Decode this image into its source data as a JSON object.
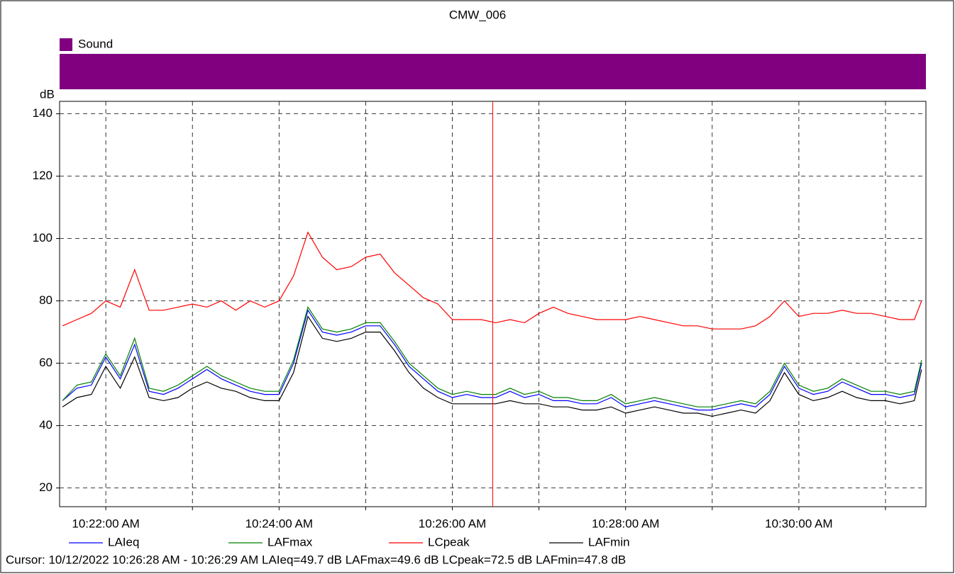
{
  "chart_data": {
    "type": "line",
    "title": "CMW_006",
    "y_label": "dB",
    "band": {
      "name": "Sound",
      "color": "#800080"
    },
    "x": [
      "10:21:30 AM",
      "10:21:40 AM",
      "10:21:50 AM",
      "10:22:00 AM",
      "10:22:10 AM",
      "10:22:20 AM",
      "10:22:30 AM",
      "10:22:40 AM",
      "10:22:50 AM",
      "10:23:00 AM",
      "10:23:10 AM",
      "10:23:20 AM",
      "10:23:30 AM",
      "10:23:40 AM",
      "10:23:50 AM",
      "10:24:00 AM",
      "10:24:10 AM",
      "10:24:20 AM",
      "10:24:30 AM",
      "10:24:40 AM",
      "10:24:50 AM",
      "10:25:00 AM",
      "10:25:10 AM",
      "10:25:20 AM",
      "10:25:30 AM",
      "10:25:40 AM",
      "10:25:50 AM",
      "10:26:00 AM",
      "10:26:10 AM",
      "10:26:20 AM",
      "10:26:30 AM",
      "10:26:40 AM",
      "10:26:50 AM",
      "10:27:00 AM",
      "10:27:10 AM",
      "10:27:20 AM",
      "10:27:30 AM",
      "10:27:40 AM",
      "10:27:50 AM",
      "10:28:00 AM",
      "10:28:10 AM",
      "10:28:20 AM",
      "10:28:30 AM",
      "10:28:40 AM",
      "10:28:50 AM",
      "10:29:00 AM",
      "10:29:10 AM",
      "10:29:20 AM",
      "10:29:30 AM",
      "10:29:40 AM",
      "10:29:50 AM",
      "10:30:00 AM",
      "10:30:10 AM",
      "10:30:20 AM",
      "10:30:30 AM",
      "10:30:40 AM",
      "10:30:50 AM",
      "10:31:00 AM",
      "10:31:10 AM",
      "10:31:20 AM",
      "10:31:25 AM"
    ],
    "series": [
      {
        "name": "LAIeq",
        "color": "#0000ff",
        "values": [
          48,
          52,
          53,
          62,
          55,
          66,
          51,
          50,
          52,
          55,
          58,
          55,
          53,
          51,
          50,
          50,
          60,
          77,
          70,
          69,
          70,
          72,
          72,
          66,
          59,
          55,
          51,
          49,
          50,
          49,
          49,
          51,
          49,
          50,
          48,
          48,
          47,
          47,
          49,
          46,
          47,
          48,
          47,
          46,
          45,
          45,
          46,
          47,
          46,
          50,
          59,
          52,
          50,
          51,
          54,
          52,
          50,
          50,
          49,
          50,
          60
        ]
      },
      {
        "name": "LAFmax",
        "color": "#008000",
        "values": [
          48,
          53,
          54,
          63,
          56,
          68,
          52,
          51,
          53,
          56,
          59,
          56,
          54,
          52,
          51,
          51,
          61,
          78,
          71,
          70,
          71,
          73,
          73,
          67,
          60,
          56,
          52,
          50,
          51,
          50,
          50,
          52,
          50,
          51,
          49,
          49,
          48,
          48,
          50,
          47,
          48,
          49,
          48,
          47,
          46,
          46,
          47,
          48,
          47,
          51,
          60,
          53,
          51,
          52,
          55,
          53,
          51,
          51,
          50,
          51,
          61
        ]
      },
      {
        "name": "LCpeak",
        "color": "#ff0000",
        "values": [
          72,
          74,
          76,
          80,
          78,
          90,
          77,
          77,
          78,
          79,
          78,
          80,
          77,
          80,
          78,
          80,
          88,
          102,
          94,
          90,
          91,
          94,
          95,
          89,
          85,
          81,
          79,
          74,
          74,
          74,
          73,
          74,
          73,
          76,
          78,
          76,
          75,
          74,
          74,
          74,
          75,
          74,
          73,
          72,
          72,
          71,
          71,
          71,
          72,
          75,
          80,
          75,
          76,
          76,
          77,
          76,
          76,
          75,
          74,
          74,
          80
        ]
      },
      {
        "name": "LAFmin",
        "color": "#000000",
        "values": [
          46,
          49,
          50,
          59,
          52,
          62,
          49,
          48,
          49,
          52,
          54,
          52,
          51,
          49,
          48,
          48,
          57,
          75,
          68,
          67,
          68,
          70,
          70,
          64,
          57,
          52,
          49,
          47,
          47,
          47,
          47,
          48,
          47,
          47,
          46,
          46,
          45,
          45,
          46,
          44,
          45,
          46,
          45,
          44,
          44,
          43,
          44,
          45,
          44,
          48,
          57,
          50,
          48,
          49,
          51,
          49,
          48,
          48,
          47,
          48,
          58
        ]
      }
    ],
    "xlim": [
      "10:21:28 AM",
      "10:31:28 AM"
    ],
    "xticks": [
      "10:22:00 AM",
      {
        "value": "10:23:00 AM",
        "label": null
      },
      "10:24:00 AM",
      {
        "value": "10:25:00 AM",
        "label": null
      },
      "10:26:00 AM",
      {
        "value": "10:27:00 AM",
        "label": null
      },
      "10:28:00 AM",
      {
        "value": "10:29:00 AM",
        "label": null
      },
      "10:30:00 AM",
      {
        "value": "10:31:00 AM",
        "label": null
      }
    ],
    "ylim": [
      14,
      144
    ],
    "yticks": [
      20,
      40,
      60,
      80,
      100,
      120,
      140
    ],
    "grid": true,
    "cursor": {
      "x": "10:26:28 AM",
      "color": "#ff0000",
      "text": "Cursor: 10/12/2022 10:26:28 AM - 10:26:29 AM  LAIeq=49.7 dB  LAFmax=49.6 dB  LCpeak=72.5 dB  LAFmin=47.8 dB"
    }
  }
}
